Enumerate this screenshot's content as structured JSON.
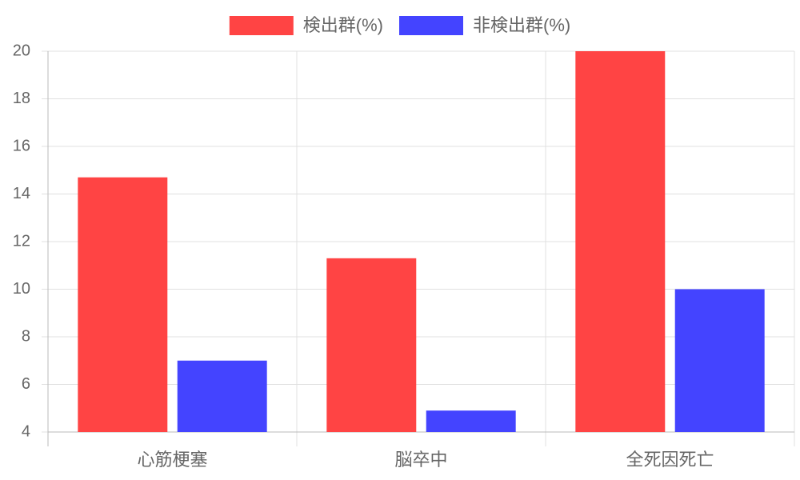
{
  "chart_data": {
    "type": "bar",
    "categories": [
      "心筋梗塞",
      "脳卒中",
      "全死因死亡"
    ],
    "series": [
      {
        "name": "検出群(%)",
        "color": "#ff4444",
        "values": [
          14.7,
          11.3,
          20
        ]
      },
      {
        "name": "非検出群(%)",
        "color": "#4444ff",
        "values": [
          7.0,
          4.9,
          10.0
        ]
      }
    ],
    "ylim": [
      4,
      20
    ],
    "yticks": [
      4,
      6,
      8,
      10,
      12,
      14,
      16,
      18,
      20
    ],
    "grid": true,
    "legend": "top"
  }
}
